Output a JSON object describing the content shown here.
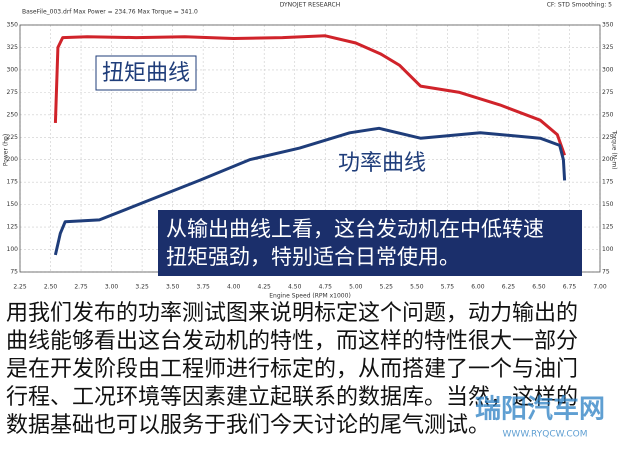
{
  "chart_data": {
    "type": "line",
    "header": {
      "file": "BaseFile_003.drf Max Power = 234.76 Max Torque = 341.0",
      "title": "DYNOJET RESEARCH",
      "settings": "CF: STD Smoothing: 5"
    },
    "xlabel": "Engine Speed (RPM x1000)",
    "ylabel": "Power (hp)",
    "y2label": "Torque (N-m)",
    "xlim": [
      2.25,
      7.0
    ],
    "xticks": [
      {
        "value": 2.25,
        "label": "2.25"
      },
      {
        "value": 2.5,
        "label": "2.50"
      },
      {
        "value": 2.75,
        "label": "2.75"
      },
      {
        "value": 3.0,
        "label": "3.00"
      },
      {
        "value": 3.25,
        "label": "3.25"
      },
      {
        "value": 3.5,
        "label": "3.50"
      },
      {
        "value": 3.75,
        "label": "3.75"
      },
      {
        "value": 4.0,
        "label": "4.00"
      },
      {
        "value": 4.25,
        "label": "4.25"
      },
      {
        "value": 4.5,
        "label": "4.50"
      },
      {
        "value": 4.75,
        "label": "4.75"
      },
      {
        "value": 5.0,
        "label": "5.00"
      },
      {
        "value": 5.25,
        "label": "5.25"
      },
      {
        "value": 5.5,
        "label": "5.50"
      },
      {
        "value": 5.75,
        "label": "5.75"
      },
      {
        "value": 6.0,
        "label": "6.00"
      },
      {
        "value": 6.25,
        "label": "6.25"
      },
      {
        "value": 6.5,
        "label": "6.50"
      },
      {
        "value": 6.75,
        "label": "6.75"
      },
      {
        "value": 7.0,
        "label": "7.00"
      }
    ],
    "ylim": [
      75,
      350
    ],
    "yticks": [
      75,
      100,
      125,
      150,
      175,
      200,
      225,
      250,
      275,
      300,
      325,
      350
    ],
    "y2lim": [
      75,
      350
    ],
    "y2ticks": [
      75,
      100,
      125,
      150,
      175,
      200,
      225,
      250,
      275,
      300,
      325,
      350
    ],
    "grid": true,
    "series": [
      {
        "name": "扭矩曲线",
        "color": "#d0232a",
        "axis": "y2",
        "x": [
          2.54,
          2.56,
          2.6,
          2.8,
          3.2,
          3.6,
          4.0,
          4.4,
          4.75,
          5.0,
          5.2,
          5.36,
          5.53,
          5.85,
          6.18,
          6.51,
          6.65,
          6.71
        ],
        "values": [
          241,
          325,
          336,
          337,
          336,
          337,
          335,
          336,
          338,
          330,
          318,
          305,
          282,
          275,
          261,
          244,
          228,
          205
        ]
      },
      {
        "name": "功率曲线",
        "color": "#1f3d7a",
        "x": [
          2.54,
          2.58,
          2.62,
          2.9,
          3.31,
          3.72,
          4.13,
          4.54,
          4.95,
          5.19,
          5.53,
          6.02,
          6.51,
          6.67,
          6.7,
          6.71
        ],
        "values": [
          94,
          118,
          131,
          133,
          155,
          177,
          200,
          213,
          230,
          235,
          224,
          230,
          224,
          216,
          200,
          177
        ]
      }
    ],
    "note": [
      "从输出曲线上看，这台发动机在中低转速",
      "扭矩强劲，特别适合日常使用。"
    ],
    "paragraph": [
      "用我们发布的功率测试图来说明标定这个问题，动力输出的",
      "曲线能够看出这台发动机的特性，而这样的特性很大一部分",
      "是在开发阶段由工程师进行标定的，从而搭建了一个与油门",
      "行程、工况环境等因素建立起联系的数据库。当然，这样的",
      "数据基础也可以服务于我们今天讨论的尾气测试。"
    ],
    "watermark": [
      "瑞阳汽车网",
      "WWW.RYQCW.COM"
    ]
  }
}
